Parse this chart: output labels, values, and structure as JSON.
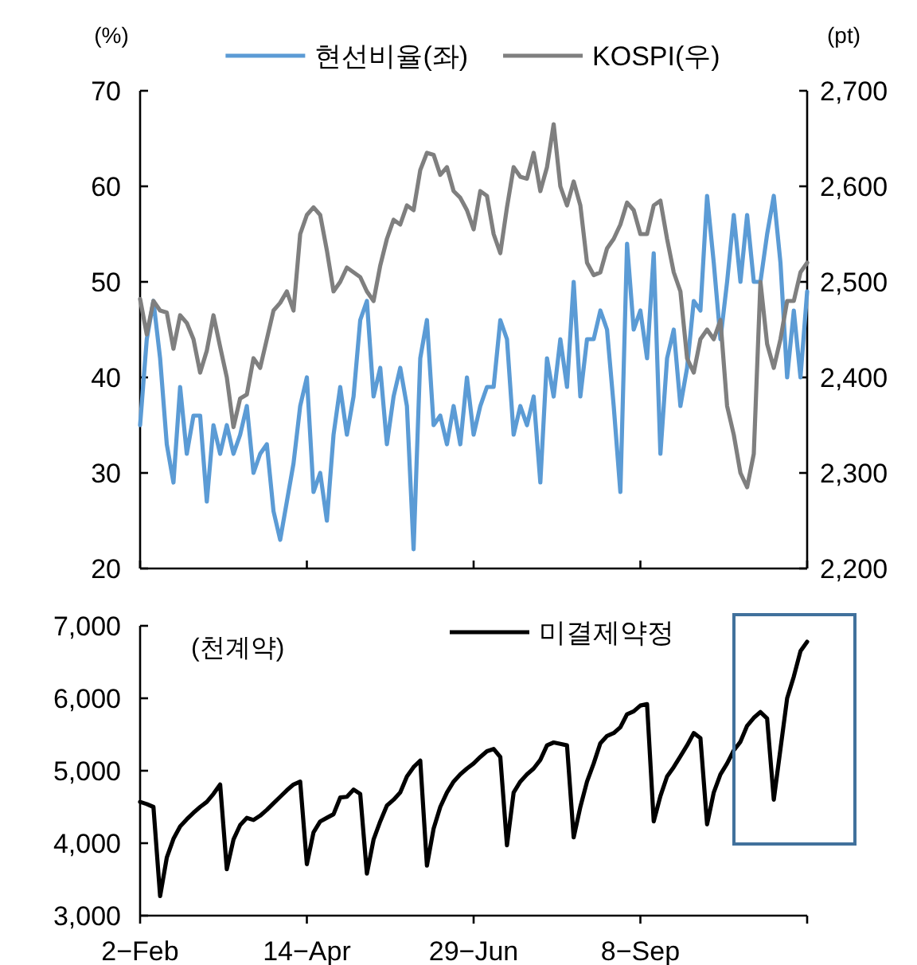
{
  "chart_data": [
    {
      "type": "line",
      "categories": [
        null,
        null,
        null,
        null,
        null,
        null,
        null,
        null,
        null,
        null,
        null,
        null,
        null,
        null,
        null,
        null,
        null,
        null,
        null,
        null,
        null,
        null,
        null,
        null,
        null,
        null,
        null,
        null,
        null,
        null,
        null,
        null,
        null,
        null,
        null,
        null,
        null,
        null,
        null,
        null,
        null,
        null,
        null,
        null,
        null,
        null,
        null,
        null,
        null,
        null,
        null,
        null,
        null,
        null,
        null,
        null,
        null,
        null,
        null,
        null,
        null,
        null,
        null,
        null,
        null,
        null,
        null,
        null,
        null,
        null,
        null,
        null,
        null,
        null,
        null,
        null,
        null,
        null,
        null,
        null,
        null,
        null,
        null,
        null,
        null,
        null,
        null,
        null,
        null,
        null,
        null,
        null,
        null,
        null,
        null,
        null,
        null,
        null,
        null,
        null,
        null
      ],
      "series": [
        {
          "name": "현선비율(좌)",
          "color": "#5b9bd5",
          "values": [
            35,
            44,
            48,
            42,
            33,
            29,
            39,
            32,
            36,
            36,
            27,
            35,
            32,
            35,
            32,
            34,
            37,
            30,
            32,
            33,
            26,
            23,
            27,
            31,
            37,
            40,
            28,
            30,
            25,
            34,
            39,
            34,
            38,
            46,
            48,
            38,
            41,
            33,
            38,
            41,
            37,
            22,
            42,
            46,
            35,
            36,
            33,
            37,
            33,
            40,
            34,
            37,
            39,
            39,
            46,
            44,
            34,
            37,
            35,
            38,
            29,
            42,
            38,
            44,
            39,
            50,
            38,
            44,
            44,
            47,
            45,
            37,
            28,
            54,
            45,
            47,
            42,
            53,
            32,
            42,
            45,
            37,
            41,
            48,
            47,
            59,
            52,
            44,
            50,
            57,
            50,
            57,
            50,
            50,
            55,
            59,
            52,
            40,
            47,
            40,
            49
          ]
        },
        {
          "name": "KOSPI(우)",
          "color": "#7f7f7f",
          "axis": "y2",
          "values": [
            2482,
            2445,
            2480,
            2470,
            2468,
            2430,
            2465,
            2457,
            2440,
            2405,
            2428,
            2465,
            2432,
            2400,
            2348,
            2378,
            2382,
            2420,
            2410,
            2440,
            2470,
            2478,
            2490,
            2470,
            2550,
            2570,
            2578,
            2570,
            2533,
            2490,
            2500,
            2515,
            2510,
            2505,
            2490,
            2480,
            2517,
            2545,
            2565,
            2560,
            2580,
            2575,
            2617,
            2635,
            2633,
            2612,
            2620,
            2595,
            2588,
            2575,
            2555,
            2595,
            2590,
            2550,
            2530,
            2578,
            2620,
            2610,
            2608,
            2635,
            2595,
            2620,
            2665,
            2600,
            2580,
            2605,
            2580,
            2520,
            2507,
            2510,
            2535,
            2545,
            2560,
            2583,
            2575,
            2550,
            2550,
            2580,
            2585,
            2545,
            2510,
            2490,
            2420,
            2405,
            2440,
            2450,
            2440,
            2460,
            2370,
            2340,
            2300,
            2285,
            2320,
            2500,
            2435,
            2410,
            2440,
            2480,
            2480,
            2510,
            2520
          ]
        }
      ],
      "ylabel": "(%)",
      "y2label": "(pt)",
      "ylim": [
        20,
        70
      ],
      "yticks": [
        20,
        30,
        40,
        50,
        60,
        70
      ],
      "y2lim": [
        2200,
        2700
      ],
      "y2ticks": [
        {
          "value": 2200,
          "label": "2,200"
        },
        {
          "value": 2300,
          "label": "2,300"
        },
        {
          "value": 2400,
          "label": "2,400"
        },
        {
          "value": 2500,
          "label": "2,500"
        },
        {
          "value": 2600,
          "label": "2,600"
        },
        {
          "value": 2700,
          "label": "2,700"
        }
      ],
      "legend": "top",
      "line_style": "solid"
    },
    {
      "type": "line",
      "categories": [
        "2−Feb",
        null,
        null,
        null,
        null,
        null,
        null,
        null,
        null,
        null,
        null,
        null,
        null,
        null,
        null,
        null,
        null,
        null,
        null,
        null,
        null,
        null,
        null,
        null,
        null,
        "14−Apr",
        null,
        null,
        null,
        null,
        null,
        null,
        null,
        null,
        null,
        null,
        null,
        null,
        null,
        null,
        null,
        null,
        null,
        null,
        null,
        null,
        null,
        null,
        null,
        null,
        "29−Jun",
        null,
        null,
        null,
        null,
        null,
        null,
        null,
        null,
        null,
        null,
        null,
        null,
        null,
        null,
        null,
        null,
        null,
        null,
        null,
        null,
        null,
        null,
        null,
        null,
        "8−Sep",
        null,
        null,
        null,
        null,
        null,
        null,
        null,
        null,
        null,
        null,
        null,
        null,
        null,
        null,
        null,
        null,
        null,
        null,
        null,
        null,
        null,
        null,
        null,
        null,
        null
      ],
      "series": [
        {
          "name": "미결제약정",
          "color": "#000000",
          "values": [
            4570,
            4540,
            4500,
            3270,
            3800,
            4060,
            4230,
            4330,
            4420,
            4500,
            4570,
            4680,
            4810,
            3640,
            4050,
            4250,
            4350,
            4320,
            4380,
            4460,
            4550,
            4640,
            4730,
            4810,
            4850,
            3710,
            4150,
            4300,
            4350,
            4400,
            4630,
            4640,
            4740,
            4680,
            3580,
            4050,
            4300,
            4520,
            4600,
            4700,
            4920,
            5050,
            5140,
            3690,
            4200,
            4500,
            4700,
            4850,
            4950,
            5030,
            5100,
            5190,
            5270,
            5300,
            5190,
            3970,
            4700,
            4850,
            4950,
            5030,
            5150,
            5350,
            5390,
            5370,
            5350,
            4080,
            4500,
            4850,
            5100,
            5380,
            5480,
            5520,
            5600,
            5780,
            5820,
            5900,
            5920,
            4300,
            4650,
            4920,
            5050,
            5200,
            5350,
            5520,
            5450,
            4260,
            4700,
            4950,
            5100,
            5280,
            5400,
            5620,
            5730,
            5810,
            5720,
            4600,
            5300,
            6000,
            6300,
            6650,
            6780
          ]
        }
      ],
      "ylabel": "(천계약)",
      "ylim": [
        3000,
        7000
      ],
      "yticks": [
        {
          "value": 3000,
          "label": "3,000"
        },
        {
          "value": 4000,
          "label": "4,000"
        },
        {
          "value": 5000,
          "label": "5,000"
        },
        {
          "value": 6000,
          "label": "6,000"
        },
        {
          "value": 7000,
          "label": "7,000"
        }
      ],
      "legend": "top",
      "line_style": "solid"
    }
  ]
}
